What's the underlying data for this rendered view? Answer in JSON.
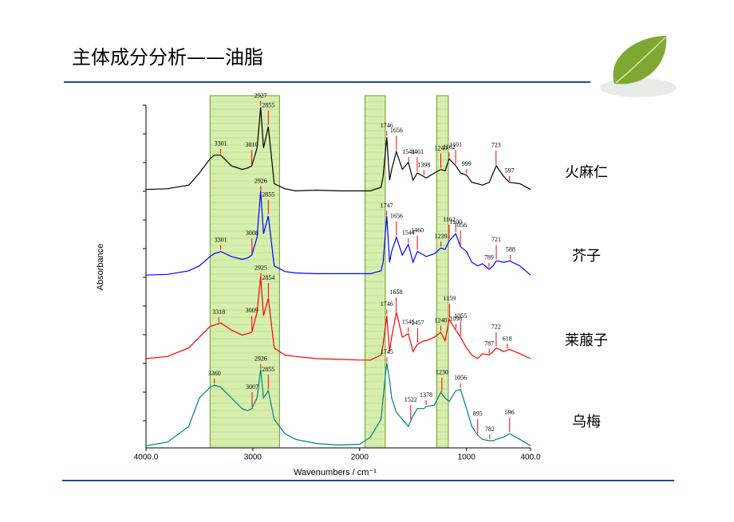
{
  "chart_data": {
    "type": "line",
    "title": "主体成分分析——油脂",
    "x_label": "Wavenumbers / cm⁻¹",
    "y_label": "Absorbance",
    "xlim": [
      4000,
      400
    ],
    "ylim": [
      0,
      4.8
    ],
    "xticks": [
      {
        "value": 4000,
        "label": "4000.0"
      },
      3000,
      2000,
      1000,
      {
        "value": 400,
        "label": "400.0"
      }
    ],
    "highlight_bands": [
      [
        3400,
        2750
      ],
      [
        1950,
        1760
      ],
      [
        1280,
        1170
      ]
    ],
    "highlight_color": "#c6e88c",
    "peak_marker_color": "#ff0000",
    "x": [
      4000,
      3800,
      3600,
      3500,
      3400,
      3360,
      3301,
      3200,
      3100,
      3050,
      3010,
      2960,
      2927,
      2900,
      2855,
      2800,
      2700,
      2600,
      2400,
      2200,
      2000,
      1900,
      1800,
      1780,
      1746,
      1720,
      1700,
      1656,
      1600,
      1544,
      1500,
      1460,
      1398,
      1378,
      1300,
      1240,
      1200,
      1162,
      1100,
      1056,
      1000,
      950,
      895,
      850,
      787,
      750,
      721,
      650,
      597,
      500,
      400
    ],
    "series": [
      {
        "name": "火麻仁",
        "color": "#000000",
        "values": [
          3.62,
          3.63,
          3.68,
          3.85,
          4.05,
          4.1,
          4.1,
          3.95,
          3.9,
          3.92,
          3.95,
          4.2,
          4.77,
          4.2,
          4.5,
          3.7,
          3.63,
          3.6,
          3.61,
          3.6,
          3.6,
          3.6,
          3.65,
          3.8,
          4.35,
          3.75,
          3.9,
          4.15,
          3.9,
          4.0,
          3.75,
          3.85,
          3.8,
          3.78,
          3.85,
          3.9,
          3.88,
          4.05,
          3.95,
          3.85,
          3.82,
          3.72,
          3.7,
          3.68,
          3.72,
          3.85,
          3.95,
          3.8,
          3.72,
          3.7,
          3.62
        ],
        "peaks": [
          3301,
          3010,
          2927,
          2855,
          1746,
          1656,
          1541,
          1461,
          1398,
          1240,
          1162,
          1101,
          999,
          723,
          597
        ]
      },
      {
        "name": "芥子",
        "color": "#0000ff",
        "values": [
          2.42,
          2.43,
          2.48,
          2.55,
          2.68,
          2.72,
          2.75,
          2.68,
          2.64,
          2.66,
          2.7,
          2.95,
          3.6,
          3.0,
          3.25,
          2.55,
          2.47,
          2.45,
          2.44,
          2.44,
          2.44,
          2.44,
          2.48,
          2.6,
          3.25,
          2.6,
          2.75,
          2.95,
          2.7,
          2.85,
          2.6,
          2.75,
          2.7,
          2.68,
          2.72,
          2.8,
          2.78,
          2.9,
          3.0,
          2.82,
          2.75,
          2.6,
          2.55,
          2.58,
          2.5,
          2.55,
          2.62,
          2.6,
          2.62,
          2.55,
          2.42
        ],
        "peaks": [
          3301,
          3008,
          2926,
          2855,
          1747,
          1656,
          1544,
          1460,
          1239,
          1162,
          1100,
          1056,
          789,
          721,
          588
        ]
      },
      {
        "name": "莱菔子",
        "color": "#ff0000",
        "values": [
          1.25,
          1.28,
          1.4,
          1.55,
          1.7,
          1.72,
          1.75,
          1.65,
          1.58,
          1.6,
          1.62,
          1.9,
          2.4,
          1.85,
          2.1,
          1.4,
          1.3,
          1.28,
          1.25,
          1.24,
          1.23,
          1.23,
          1.3,
          1.45,
          1.85,
          1.35,
          1.55,
          1.9,
          1.55,
          1.6,
          1.35,
          1.45,
          1.5,
          1.5,
          1.55,
          1.62,
          1.5,
          1.8,
          1.65,
          1.55,
          1.4,
          1.3,
          1.25,
          1.32,
          1.3,
          1.35,
          1.4,
          1.35,
          1.38,
          1.32,
          1.25
        ],
        "peaks": [
          3318,
          3009,
          2925,
          2854,
          1746,
          1658,
          1545,
          1457,
          1240,
          1159,
          1098,
          1055,
          787,
          722,
          618
        ]
      },
      {
        "name": "乌梅",
        "color": "#008080",
        "values": [
          0.03,
          0.08,
          0.3,
          0.7,
          0.85,
          0.88,
          0.85,
          0.7,
          0.55,
          0.52,
          0.55,
          0.7,
          1.1,
          0.7,
          0.8,
          0.4,
          0.2,
          0.12,
          0.06,
          0.04,
          0.05,
          0.15,
          0.4,
          0.7,
          1.19,
          0.95,
          0.7,
          0.5,
          0.4,
          0.3,
          0.45,
          0.55,
          0.55,
          0.58,
          0.6,
          0.78,
          0.7,
          0.65,
          0.8,
          0.82,
          0.55,
          0.3,
          0.18,
          0.12,
          0.1,
          0.1,
          0.12,
          0.15,
          0.2,
          0.12,
          0.03
        ],
        "peaks": [
          3360,
          3007,
          2926,
          2855,
          1745,
          1522,
          1378,
          1230,
          1056,
          895,
          782,
          596
        ]
      }
    ]
  }
}
